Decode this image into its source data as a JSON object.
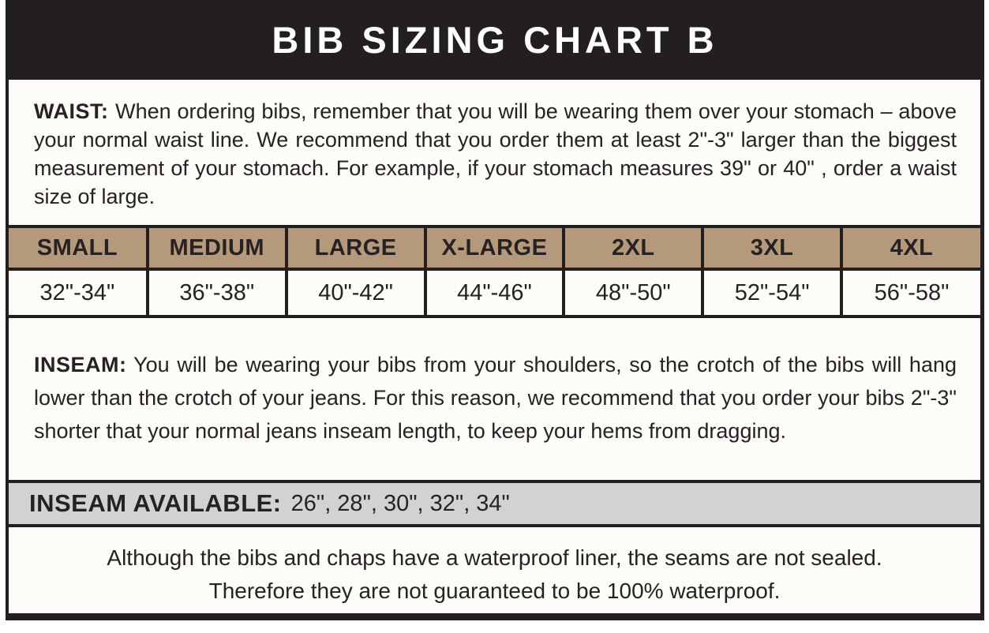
{
  "header": {
    "title": "BIB SIZING CHART B"
  },
  "waist": {
    "label": "WAIST:",
    "text": "When ordering bibs, remember that you will be wearing them over your stomach – above your normal waist line. We recommend that you order them at least 2\"-3\" larger than the biggest measurement of your stomach. For example, if your stomach measures 39\" or 40\" , order a waist size of large."
  },
  "size_table": {
    "headers": [
      "SMALL",
      "MEDIUM",
      "LARGE",
      "X-LARGE",
      "2XL",
      "3XL",
      "4XL"
    ],
    "values": [
      "32\"-34\"",
      "36\"-38\"",
      "40\"-42\"",
      "44\"-46\"",
      "48\"-50\"",
      "52\"-54\"",
      "56\"-58\""
    ]
  },
  "inseam": {
    "label": "INSEAM:",
    "text": "You will be wearing your bibs from your shoulders, so the crotch of the bibs will hang lower than the crotch of your jeans. For this reason, we recommend that you order your bibs 2\"-3\" shorter that your normal jeans inseam length, to keep your hems from dragging."
  },
  "inseam_available": {
    "label": "INSEAM AVAILABLE:",
    "values": "26\", 28\", 30\", 32\", 34\""
  },
  "footer": {
    "line1": "Although the bibs and chaps have a waterproof liner, the seams are not sealed.",
    "line2": "Therefore they are not guaranteed to be 100% waterproof."
  },
  "colors": {
    "title_bar_bg": "#231f20",
    "title_text": "#ffffff",
    "table_header_bg": "#b49a7b",
    "available_bar_bg": "#d1d2d4",
    "page_bg": "#fdfcf9",
    "text": "#262223"
  }
}
